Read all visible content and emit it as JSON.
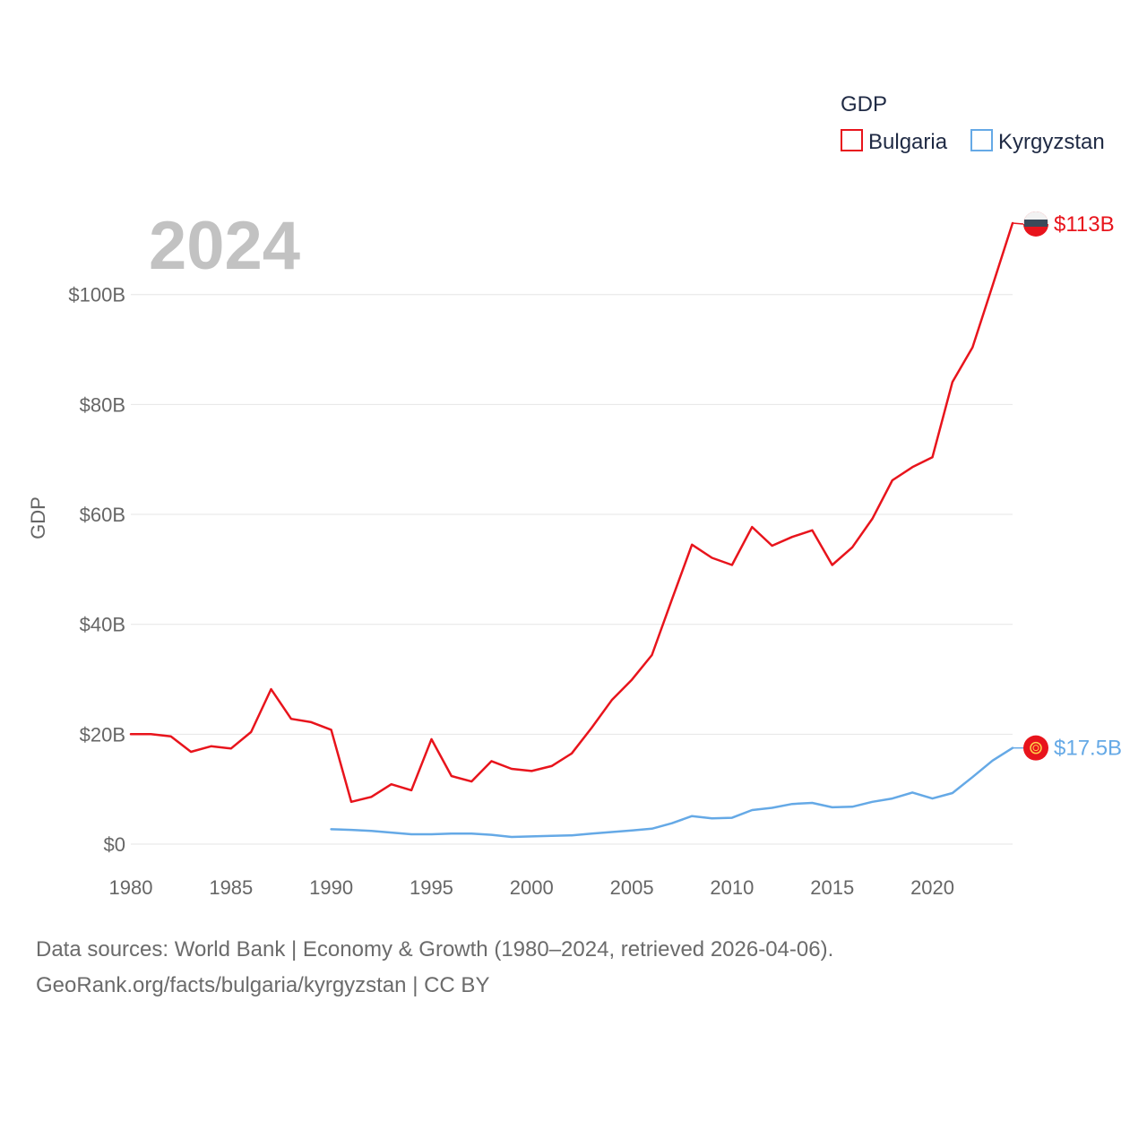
{
  "chart_data": {
    "type": "line",
    "title": "",
    "year_label": "2024",
    "ylabel": "GDP",
    "xlabel": "",
    "xlim": [
      1980,
      2024
    ],
    "ylim": [
      0,
      113
    ],
    "x_ticks": [
      1980,
      1985,
      1990,
      1995,
      2000,
      2005,
      2010,
      2015,
      2020
    ],
    "x_tick_labels": [
      "1980",
      "1985",
      "1990",
      "1995",
      "2000",
      "2005",
      "2010",
      "2015",
      "2020"
    ],
    "y_ticks": [
      0,
      20,
      40,
      60,
      80,
      100
    ],
    "y_tick_labels": [
      "$0",
      "$20B",
      "$40B",
      "$60B",
      "$80B",
      "$100B"
    ],
    "grid": true,
    "legend": {
      "title": "GDP",
      "position": "top-right",
      "entries": [
        "Bulgaria",
        "Kyrgyzstan"
      ]
    },
    "series": [
      {
        "name": "Bulgaria",
        "color": "#e8141c",
        "end_label": "$113B",
        "x": [
          1980,
          1981,
          1982,
          1983,
          1984,
          1985,
          1986,
          1987,
          1988,
          1989,
          1990,
          1991,
          1992,
          1993,
          1994,
          1995,
          1996,
          1997,
          1998,
          1999,
          2000,
          2001,
          2002,
          2003,
          2004,
          2005,
          2006,
          2007,
          2008,
          2009,
          2010,
          2011,
          2012,
          2013,
          2014,
          2015,
          2016,
          2017,
          2018,
          2019,
          2020,
          2021,
          2022,
          2023,
          2024
        ],
        "values": [
          20.0,
          20.0,
          19.6,
          16.8,
          17.8,
          17.4,
          20.4,
          28.2,
          22.8,
          22.2,
          20.8,
          7.7,
          8.6,
          10.9,
          9.8,
          19.1,
          12.4,
          11.4,
          15.1,
          13.7,
          13.3,
          14.2,
          16.5,
          21.2,
          26.2,
          29.9,
          34.4,
          44.5,
          54.5,
          52.1,
          50.8,
          57.7,
          54.3,
          55.9,
          57.1,
          50.8,
          54.0,
          59.2,
          66.2,
          68.6,
          70.4,
          84.1,
          90.4,
          101.6,
          113.0
        ]
      },
      {
        "name": "Kyrgyzstan",
        "color": "#65a9e6",
        "end_label": "$17.5B",
        "x": [
          1990,
          1991,
          1992,
          1993,
          1994,
          1995,
          1996,
          1997,
          1998,
          1999,
          2000,
          2001,
          2002,
          2003,
          2004,
          2005,
          2006,
          2007,
          2008,
          2009,
          2010,
          2011,
          2012,
          2013,
          2014,
          2015,
          2016,
          2017,
          2018,
          2019,
          2020,
          2021,
          2022,
          2023,
          2024
        ],
        "values": [
          2.7,
          2.6,
          2.4,
          2.1,
          1.8,
          1.8,
          1.9,
          1.9,
          1.7,
          1.3,
          1.4,
          1.5,
          1.6,
          1.9,
          2.2,
          2.5,
          2.8,
          3.8,
          5.1,
          4.7,
          4.8,
          6.2,
          6.6,
          7.3,
          7.5,
          6.7,
          6.8,
          7.7,
          8.3,
          9.4,
          8.3,
          9.3,
          12.2,
          15.2,
          17.5
        ]
      }
    ]
  },
  "footer": {
    "line1": "Data sources: World Bank | Economy & Growth (1980–2024, retrieved 2026-04-06).",
    "line2": "GeoRank.org/facts/bulgaria/kyrgyzstan | CC BY"
  }
}
